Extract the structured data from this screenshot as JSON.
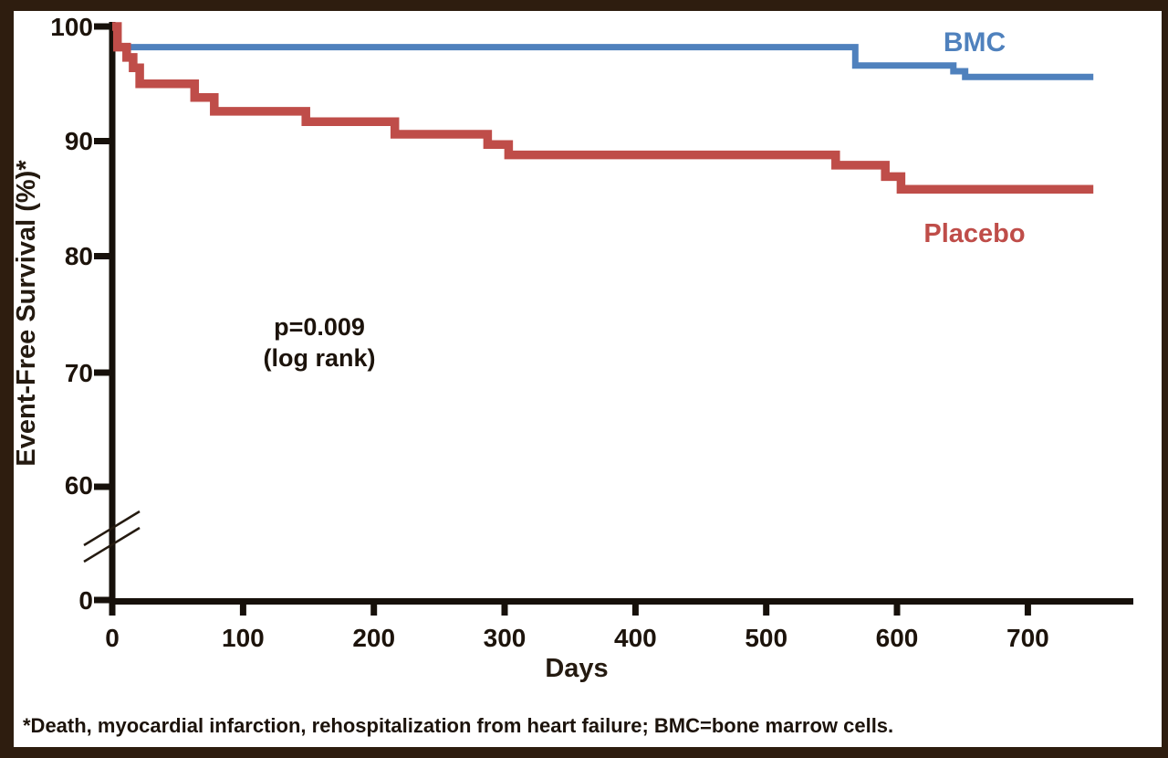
{
  "frame": {
    "border_color": "#2e1d0f",
    "background_color": "#ffffff"
  },
  "chart_data": {
    "type": "line",
    "subtype": "kaplan-meier-step-curve",
    "xlabel": "Days",
    "ylabel": "Event-Free Survival (%)*",
    "x_range": [
      0,
      780
    ],
    "y_range_displayed": [
      60,
      100
    ],
    "y_axis_break_between": [
      0,
      60
    ],
    "grid": false,
    "x_ticks": [
      0,
      100,
      200,
      300,
      400,
      500,
      600,
      700
    ],
    "y_ticks": [
      0,
      60,
      70,
      80,
      90,
      100
    ],
    "series": [
      {
        "name": "BMC",
        "color": "#4f81bd",
        "stroke_width": 7,
        "end_day": 750,
        "points": [
          [
            0,
            100
          ],
          [
            4,
            98.2
          ],
          [
            568,
            96.6
          ],
          [
            643,
            96.1
          ],
          [
            652,
            95.6
          ]
        ]
      },
      {
        "name": "Placebo",
        "color": "#bf4d49",
        "stroke_width": 9.5,
        "end_day": 750,
        "points": [
          [
            0,
            100
          ],
          [
            4,
            98.2
          ],
          [
            11,
            97.3
          ],
          [
            16,
            96.4
          ],
          [
            21,
            95.0
          ],
          [
            63,
            93.8
          ],
          [
            78,
            92.6
          ],
          [
            148,
            91.7
          ],
          [
            216,
            90.6
          ],
          [
            287,
            89.7
          ],
          [
            303,
            88.8
          ],
          [
            553,
            87.9
          ],
          [
            591,
            86.9
          ],
          [
            603,
            85.8
          ]
        ]
      }
    ],
    "annotations": {
      "p_value_line1": "p=0.009",
      "p_value_line2": "(log rank)"
    }
  },
  "footnote": "*Death, myocardial infarction, rehospitalization from heart failure; BMC=bone marrow cells."
}
